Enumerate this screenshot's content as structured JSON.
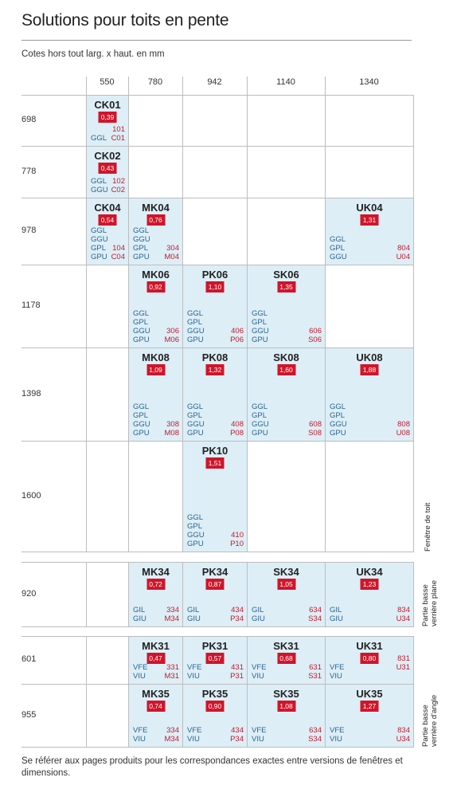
{
  "title": "Solutions pour toits en pente",
  "subtitle": "Cotes hors tout larg. x haut. en mm",
  "columns": [
    "550",
    "780",
    "942",
    "1140",
    "1340"
  ],
  "sections": [
    {
      "label": "Fenêtre de toit",
      "rows": [
        "698",
        "778",
        "978",
        "1178",
        "1398",
        "1600"
      ]
    },
    {
      "label": "Partie basse verrière plane",
      "label_lines": [
        "Partie basse",
        "verrière plane"
      ],
      "rows": [
        "920"
      ]
    },
    {
      "label": "Partie basse verrière d'angle",
      "label_lines": [
        "Partie basse",
        "verrière d'angle"
      ],
      "rows": [
        "601",
        "955"
      ]
    }
  ],
  "cells": [
    {
      "code": "CK01",
      "value": "0,39",
      "lines": [
        [
          "",
          ""
        ],
        [
          "",
          "101"
        ],
        [
          "GGL",
          "C01"
        ]
      ]
    },
    {
      "code": "CK02",
      "value": "0,43",
      "lines": [
        [
          "GGL",
          "102"
        ],
        [
          "GGU",
          "C02"
        ]
      ]
    },
    {
      "code": "CK04",
      "value": "0,54",
      "lines": [
        [
          "GGL",
          ""
        ],
        [
          "GGU",
          ""
        ],
        [
          "GPL",
          "104"
        ],
        [
          "GPU",
          "C04"
        ]
      ]
    },
    {
      "code": "MK04",
      "value": "0,76",
      "lines": [
        [
          "GGL",
          ""
        ],
        [
          "GGU",
          ""
        ],
        [
          "GPL",
          "304"
        ],
        [
          "GPU",
          "M04"
        ]
      ]
    },
    {
      "code": "UK04",
      "value": "1,31",
      "lines": [
        [
          "GGL",
          ""
        ],
        [
          "GPL",
          "804"
        ],
        [
          "GGU",
          "U04"
        ]
      ]
    },
    {
      "code": "MK06",
      "value": "0,92",
      "lines": [
        [
          "GGL",
          ""
        ],
        [
          "GPL",
          ""
        ],
        [
          "GGU",
          "306"
        ],
        [
          "GPU",
          "M06"
        ]
      ]
    },
    {
      "code": "PK06",
      "value": "1,10",
      "lines": [
        [
          "GGL",
          ""
        ],
        [
          "GPL",
          ""
        ],
        [
          "GGU",
          "406"
        ],
        [
          "GPU",
          "P06"
        ]
      ]
    },
    {
      "code": "SK06",
      "value": "1,35",
      "lines": [
        [
          "GGL",
          ""
        ],
        [
          "GPL",
          ""
        ],
        [
          "GGU",
          "606"
        ],
        [
          "GPU",
          "S06"
        ]
      ]
    },
    {
      "code": "MK08",
      "value": "1,09",
      "lines": [
        [
          "GGL",
          ""
        ],
        [
          "GPL",
          ""
        ],
        [
          "GGU",
          "308"
        ],
        [
          "GPU",
          "M08"
        ]
      ]
    },
    {
      "code": "PK08",
      "value": "1,32",
      "lines": [
        [
          "GGL",
          ""
        ],
        [
          "GPL",
          ""
        ],
        [
          "GGU",
          "408"
        ],
        [
          "GPU",
          "P08"
        ]
      ]
    },
    {
      "code": "SK08",
      "value": "1,60",
      "lines": [
        [
          "GGL",
          ""
        ],
        [
          "GPL",
          ""
        ],
        [
          "GGU",
          "608"
        ],
        [
          "GPU",
          "S08"
        ]
      ]
    },
    {
      "code": "UK08",
      "value": "1,88",
      "lines": [
        [
          "GGL",
          ""
        ],
        [
          "GPL",
          ""
        ],
        [
          "GGU",
          "808"
        ],
        [
          "GPU",
          "U08"
        ]
      ]
    },
    {
      "code": "PK10",
      "value": "1,51",
      "lines": [
        [
          "GGL",
          ""
        ],
        [
          "GPL",
          ""
        ],
        [
          "GGU",
          "410"
        ],
        [
          "GPU",
          "P10"
        ]
      ]
    },
    {
      "code": "MK34",
      "value": "0,72",
      "lines": [
        [
          "GIL",
          "334"
        ],
        [
          "GIU",
          "M34"
        ]
      ]
    },
    {
      "code": "PK34",
      "value": "0,87",
      "lines": [
        [
          "GIL",
          "434"
        ],
        [
          "GIU",
          "P34"
        ]
      ]
    },
    {
      "code": "SK34",
      "value": "1,05",
      "lines": [
        [
          "GIL",
          "634"
        ],
        [
          "GIU",
          "S34"
        ]
      ]
    },
    {
      "code": "UK34",
      "value": "1,23",
      "lines": [
        [
          "GIL",
          "834"
        ],
        [
          "GIU",
          "U34"
        ]
      ]
    },
    {
      "code": "MK31",
      "value": "0,47",
      "lines": [
        [
          "VFE",
          "331"
        ],
        [
          "VIU",
          "M31"
        ]
      ]
    },
    {
      "code": "PK31",
      "value": "0,57",
      "lines": [
        [
          "VFE",
          "431"
        ],
        [
          "VIU",
          "P31"
        ]
      ]
    },
    {
      "code": "SK31",
      "value": "0,68",
      "lines": [
        [
          "VFE",
          "631"
        ],
        [
          "VIU",
          "S31"
        ]
      ]
    },
    {
      "code": "UK31",
      "value": "0,80",
      "lines": [
        [
          "",
          "831"
        ],
        [
          "VFE",
          "U31"
        ],
        [
          "VIU",
          ""
        ]
      ]
    },
    {
      "code": "MK35",
      "value": "0,74",
      "lines": [
        [
          "VFE",
          "334"
        ],
        [
          "VIU",
          "M34"
        ]
      ]
    },
    {
      "code": "PK35",
      "value": "0,90",
      "lines": [
        [
          "VFE",
          "434"
        ],
        [
          "VIU",
          "P34"
        ]
      ]
    },
    {
      "code": "SK35",
      "value": "1,08",
      "lines": [
        [
          "VFE",
          "634"
        ],
        [
          "VIU",
          "S34"
        ]
      ]
    },
    {
      "code": "UK35",
      "value": "1,27",
      "lines": [
        [
          "VFE",
          "834"
        ],
        [
          "VIU",
          "U34"
        ]
      ]
    }
  ],
  "footer": "Se référer aux pages produits pour les correspondances exactes entre versions de fenêtres et dimensions.",
  "colors": {
    "cell_fill": "#ddeef7",
    "badge": "#d0152a",
    "type_text": "#2a6592",
    "number_text": "#c41a2a"
  }
}
